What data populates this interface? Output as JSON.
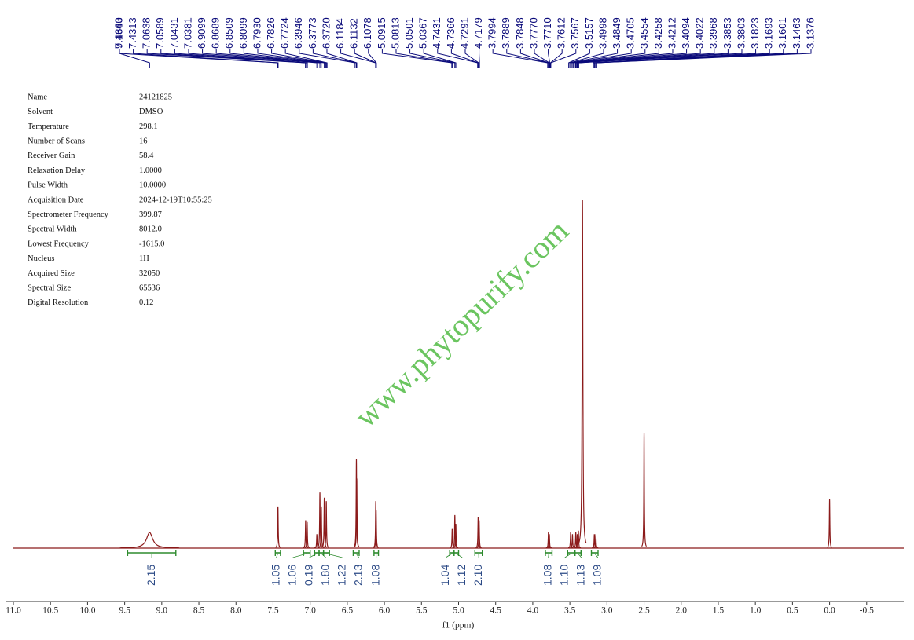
{
  "chart_data": {
    "type": "spectrum",
    "x_label": "f1 (ppm)",
    "watermark": "www.phytopurify.com",
    "parameters": [
      [
        "Name",
        "24121825"
      ],
      [
        "Solvent",
        "DMSO"
      ],
      [
        "Temperature",
        "298.1"
      ],
      [
        "Number of Scans",
        "16"
      ],
      [
        "Receiver Gain",
        "58.4"
      ],
      [
        "Relaxation Delay",
        "1.0000"
      ],
      [
        "Pulse Width",
        "10.0000"
      ],
      [
        "Acquisition Date",
        "2024-12-19T10:55:25"
      ],
      [
        "Spectrometer Frequency",
        "399.87"
      ],
      [
        "Spectral Width",
        "8012.0"
      ],
      [
        "Lowest Frequency",
        "-1615.0"
      ],
      [
        "Nucleus",
        "1H"
      ],
      [
        "Acquired Size",
        "32050"
      ],
      [
        "Spectral Size",
        "65536"
      ],
      [
        "Digital Resolution",
        "0.12"
      ]
    ],
    "xlim": [
      11.0,
      -1.0
    ],
    "ylim": [
      0,
      100
    ],
    "xticks": [
      {
        "value": 11,
        "label": "11.0"
      },
      10.5,
      {
        "value": 10,
        "label": "10.0"
      },
      9.5,
      {
        "value": 9,
        "label": "9.0"
      },
      8.5,
      {
        "value": 8,
        "label": "8.0"
      },
      7.5,
      {
        "value": 7,
        "label": "7.0"
      },
      6.5,
      {
        "value": 6,
        "label": "6.0"
      },
      5.5,
      {
        "value": 5,
        "label": "5.0"
      },
      4.5,
      {
        "value": 4,
        "label": "4.0"
      },
      3.5,
      {
        "value": 3,
        "label": "3.0"
      },
      2.5,
      {
        "value": 2,
        "label": "2.0"
      },
      1.5,
      {
        "value": 1,
        "label": "1.0"
      },
      0.5,
      {
        "value": 0,
        "label": "0.0"
      },
      -0.5
    ],
    "color": "#8b1a1a",
    "peaks": {
      "x": [
        9.164,
        7.434,
        7.061,
        7.041,
        6.91,
        6.869,
        6.85,
        6.81,
        6.783,
        6.377,
        6.372,
        6.116,
        6.111,
        5.086,
        5.05,
        5.037,
        4.736,
        4.723,
        3.789,
        3.777,
        3.49,
        3.465,
        3.42,
        3.4,
        3.385,
        3.33,
        3.17,
        3.15,
        2.5,
        0.0
      ],
      "values": [
        4.5,
        12,
        8,
        7.5,
        4,
        16,
        12,
        14.5,
        13.5,
        25.5,
        20,
        13.5,
        11,
        5.5,
        9.5,
        7,
        9,
        8,
        4.5,
        4,
        4.5,
        4,
        4.5,
        4,
        5,
        100,
        4,
        4,
        33,
        14
      ],
      "widths": [
        0.05,
        0.004,
        0.004,
        0.004,
        0.004,
        0.004,
        0.004,
        0.004,
        0.004,
        0.004,
        0.004,
        0.004,
        0.004,
        0.004,
        0.004,
        0.004,
        0.004,
        0.004,
        0.004,
        0.004,
        0.004,
        0.004,
        0.004,
        0.004,
        0.004,
        0.006,
        0.004,
        0.004,
        0.004,
        0.004
      ]
    },
    "peak_labels": [
      {
        "value": 9.164,
        "label": "9.1640"
      },
      {
        "value": 7.4363,
        "label": "7.4363"
      },
      {
        "value": 7.4313,
        "label": "7.4313"
      },
      {
        "value": 7.0638,
        "label": "7.0638"
      },
      {
        "value": 7.0589,
        "label": "7.0589"
      },
      {
        "value": 7.0431,
        "label": "7.0431"
      },
      {
        "value": 7.0381,
        "label": "7.0381"
      },
      {
        "value": 6.9099,
        "label": "6.9099"
      },
      {
        "value": 6.8689,
        "label": "6.8689"
      },
      {
        "value": 6.8509,
        "label": "6.8509"
      },
      {
        "value": 6.8099,
        "label": "6.8099"
      },
      {
        "value": 6.793,
        "label": "6.7930"
      },
      {
        "value": 6.7826,
        "label": "6.7826"
      },
      {
        "value": 6.7724,
        "label": "6.7724"
      },
      {
        "value": 6.3946,
        "label": "6.3946"
      },
      {
        "value": 6.3773,
        "label": "6.3773"
      },
      {
        "value": 6.372,
        "label": "6.3720"
      },
      {
        "value": 6.1184,
        "label": "6.1184"
      },
      {
        "value": 6.1132,
        "label": "6.1132"
      },
      {
        "value": 6.1078,
        "label": "6.1078"
      },
      {
        "value": 5.0915,
        "label": "5.0915"
      },
      {
        "value": 5.0813,
        "label": "5.0813"
      },
      {
        "value": 5.0501,
        "label": "5.0501"
      },
      {
        "value": 5.0367,
        "label": "5.0367"
      },
      {
        "value": 4.7431,
        "label": "4.7431"
      },
      {
        "value": 4.7366,
        "label": "4.7366"
      },
      {
        "value": 4.7291,
        "label": "4.7291"
      },
      {
        "value": 4.7179,
        "label": "4.7179"
      },
      {
        "value": 3.7994,
        "label": "3.7994"
      },
      {
        "value": 3.7889,
        "label": "3.7889"
      },
      {
        "value": 3.7848,
        "label": "3.7848"
      },
      {
        "value": 3.777,
        "label": "3.7770"
      },
      {
        "value": 3.771,
        "label": "3.7710"
      },
      {
        "value": 3.7612,
        "label": "3.7612"
      },
      {
        "value": 3.7567,
        "label": "3.7567"
      },
      {
        "value": 3.5157,
        "label": "3.5157"
      },
      {
        "value": 3.4998,
        "label": "3.4998"
      },
      {
        "value": 3.4849,
        "label": "3.4849"
      },
      {
        "value": 3.4705,
        "label": "3.4705"
      },
      {
        "value": 3.4554,
        "label": "3.4554"
      },
      {
        "value": 3.4258,
        "label": "3.4258"
      },
      {
        "value": 3.4212,
        "label": "3.4212"
      },
      {
        "value": 3.4094,
        "label": "3.4094"
      },
      {
        "value": 3.4022,
        "label": "3.4022"
      },
      {
        "value": 3.3968,
        "label": "3.3968"
      },
      {
        "value": 3.3853,
        "label": "3.3853"
      },
      {
        "value": 3.3803,
        "label": "3.3803"
      },
      {
        "value": 3.1823,
        "label": "3.1823"
      },
      {
        "value": 3.1693,
        "label": "3.1693"
      },
      {
        "value": 3.1601,
        "label": "3.1601"
      },
      {
        "value": 3.1463,
        "label": "3.1463"
      },
      {
        "value": 3.1376,
        "label": "3.1376"
      }
    ],
    "integrals": {
      "ranges": [
        [
          9.46,
          8.81
        ],
        [
          7.47,
          7.4
        ],
        [
          7.09,
          7.0
        ],
        [
          6.94,
          6.88
        ],
        [
          6.88,
          6.82
        ],
        [
          6.82,
          6.74
        ],
        [
          6.42,
          6.34
        ],
        [
          6.14,
          6.08
        ],
        [
          5.12,
          5.06
        ],
        [
          5.06,
          5.0
        ],
        [
          4.78,
          4.68
        ],
        [
          3.83,
          3.74
        ],
        [
          3.53,
          3.44
        ],
        [
          3.43,
          3.35
        ],
        [
          3.21,
          3.12
        ]
      ],
      "values": [
        2.15,
        1.05,
        1.06,
        0.19,
        1.8,
        1.22,
        2.13,
        1.08,
        1.04,
        1.12,
        2.1,
        1.08,
        1.1,
        1.13,
        1.09
      ],
      "value_labels": [
        "2.15",
        "1.05",
        "1.06",
        "0.19",
        "1.80",
        "1.22",
        "2.13",
        "1.08",
        "1.04",
        "1.12",
        "2.10",
        "1.08",
        "1.10",
        "1.13",
        "1.09"
      ]
    }
  }
}
